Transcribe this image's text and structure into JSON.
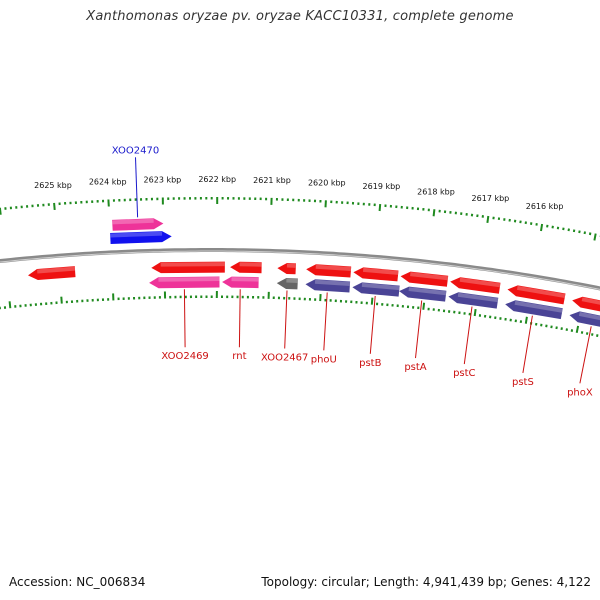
{
  "title": "Xanthomonas oryzae pv. oryzae KACC10331, complete genome",
  "footer": {
    "accession": "Accession: NC_006834",
    "summary": "Topology: circular; Length: 4,941,439 bp; Genes: 4,122"
  },
  "colors": {
    "backbone": "#8a8a8a",
    "tick": "#1f8a1f",
    "gene_red": "#ee1111",
    "gene_pink": "#ee3399",
    "gene_blue": "#1111ee",
    "gene_navy": "#4a4496",
    "gene_gray": "#666666",
    "label_red": "#cc1111",
    "label_blue": "#1a1acc"
  },
  "chart_data": {
    "type": "genome-map",
    "scale_labels": [
      "2625 kbp",
      "2624 kbp",
      "2623 kbp",
      "2622 kbp",
      "2621 kbp",
      "2620 kbp",
      "2619 kbp",
      "2618 kbp",
      "2617 kbp",
      "2616 kbp"
    ],
    "scale_values_kbp": [
      2625,
      2624,
      2623,
      2622,
      2621,
      2620,
      2619,
      2618,
      2617,
      2616
    ],
    "genes": [
      {
        "name": "",
        "strand": "reverse",
        "start_kbp": 2625.6,
        "end_kbp": 2624.7,
        "row": "minus1",
        "color": "red"
      },
      {
        "name": "XOO2470",
        "strand": "forward",
        "start_kbp": 2623.95,
        "end_kbp": 2623.0,
        "row": "plus2",
        "color": "pink",
        "label_color": "blue"
      },
      {
        "name": "XOO2470",
        "strand": "forward",
        "start_kbp": 2624.0,
        "end_kbp": 2622.85,
        "row": "plus1",
        "color": "blue",
        "label_color": "none"
      },
      {
        "name": "",
        "strand": "reverse",
        "start_kbp": 2623.25,
        "end_kbp": 2621.85,
        "row": "minus1",
        "color": "red"
      },
      {
        "name": "XOO2469",
        "strand": "reverse",
        "start_kbp": 2623.3,
        "end_kbp": 2621.95,
        "row": "minus2",
        "color": "pink",
        "label_color": "red"
      },
      {
        "name": "",
        "strand": "reverse",
        "start_kbp": 2621.75,
        "end_kbp": 2621.15,
        "row": "minus1",
        "color": "red"
      },
      {
        "name": "rnt",
        "strand": "reverse",
        "start_kbp": 2621.9,
        "end_kbp": 2621.2,
        "row": "minus2",
        "color": "pink",
        "label_color": "red"
      },
      {
        "name": "",
        "strand": "reverse",
        "start_kbp": 2620.85,
        "end_kbp": 2620.5,
        "row": "minus1",
        "color": "red"
      },
      {
        "name": "XOO2467",
        "strand": "reverse",
        "start_kbp": 2620.85,
        "end_kbp": 2620.45,
        "row": "minus2",
        "color": "gray",
        "label_color": "red"
      },
      {
        "name": "",
        "strand": "reverse",
        "start_kbp": 2620.3,
        "end_kbp": 2619.45,
        "row": "minus1",
        "color": "red"
      },
      {
        "name": "phoU",
        "strand": "reverse",
        "start_kbp": 2620.3,
        "end_kbp": 2619.45,
        "row": "minus2",
        "color": "navy",
        "label_color": "red"
      },
      {
        "name": "",
        "strand": "reverse",
        "start_kbp": 2619.4,
        "end_kbp": 2618.55,
        "row": "minus1",
        "color": "red"
      },
      {
        "name": "pstB",
        "strand": "reverse",
        "start_kbp": 2619.4,
        "end_kbp": 2618.5,
        "row": "minus2",
        "color": "navy",
        "label_color": "red"
      },
      {
        "name": "",
        "strand": "reverse",
        "start_kbp": 2618.5,
        "end_kbp": 2617.6,
        "row": "minus1",
        "color": "red"
      },
      {
        "name": "pstA",
        "strand": "reverse",
        "start_kbp": 2618.5,
        "end_kbp": 2617.6,
        "row": "minus2",
        "color": "navy",
        "label_color": "red"
      },
      {
        "name": "",
        "strand": "reverse",
        "start_kbp": 2617.55,
        "end_kbp": 2616.6,
        "row": "minus1",
        "color": "red"
      },
      {
        "name": "pstC",
        "strand": "reverse",
        "start_kbp": 2617.55,
        "end_kbp": 2616.6,
        "row": "minus2",
        "color": "navy",
        "label_color": "red"
      },
      {
        "name": "",
        "strand": "reverse",
        "start_kbp": 2616.45,
        "end_kbp": 2615.35,
        "row": "minus1",
        "color": "red"
      },
      {
        "name": "pstS",
        "strand": "reverse",
        "start_kbp": 2616.45,
        "end_kbp": 2615.35,
        "row": "minus2",
        "color": "navy",
        "label_color": "red"
      },
      {
        "name": "",
        "strand": "reverse",
        "start_kbp": 2615.2,
        "end_kbp": 2614.3,
        "row": "minus1",
        "color": "red"
      },
      {
        "name": "phoX",
        "strand": "reverse",
        "start_kbp": 2615.2,
        "end_kbp": 2614.3,
        "row": "minus2",
        "color": "navy",
        "label_color": "red"
      }
    ]
  }
}
